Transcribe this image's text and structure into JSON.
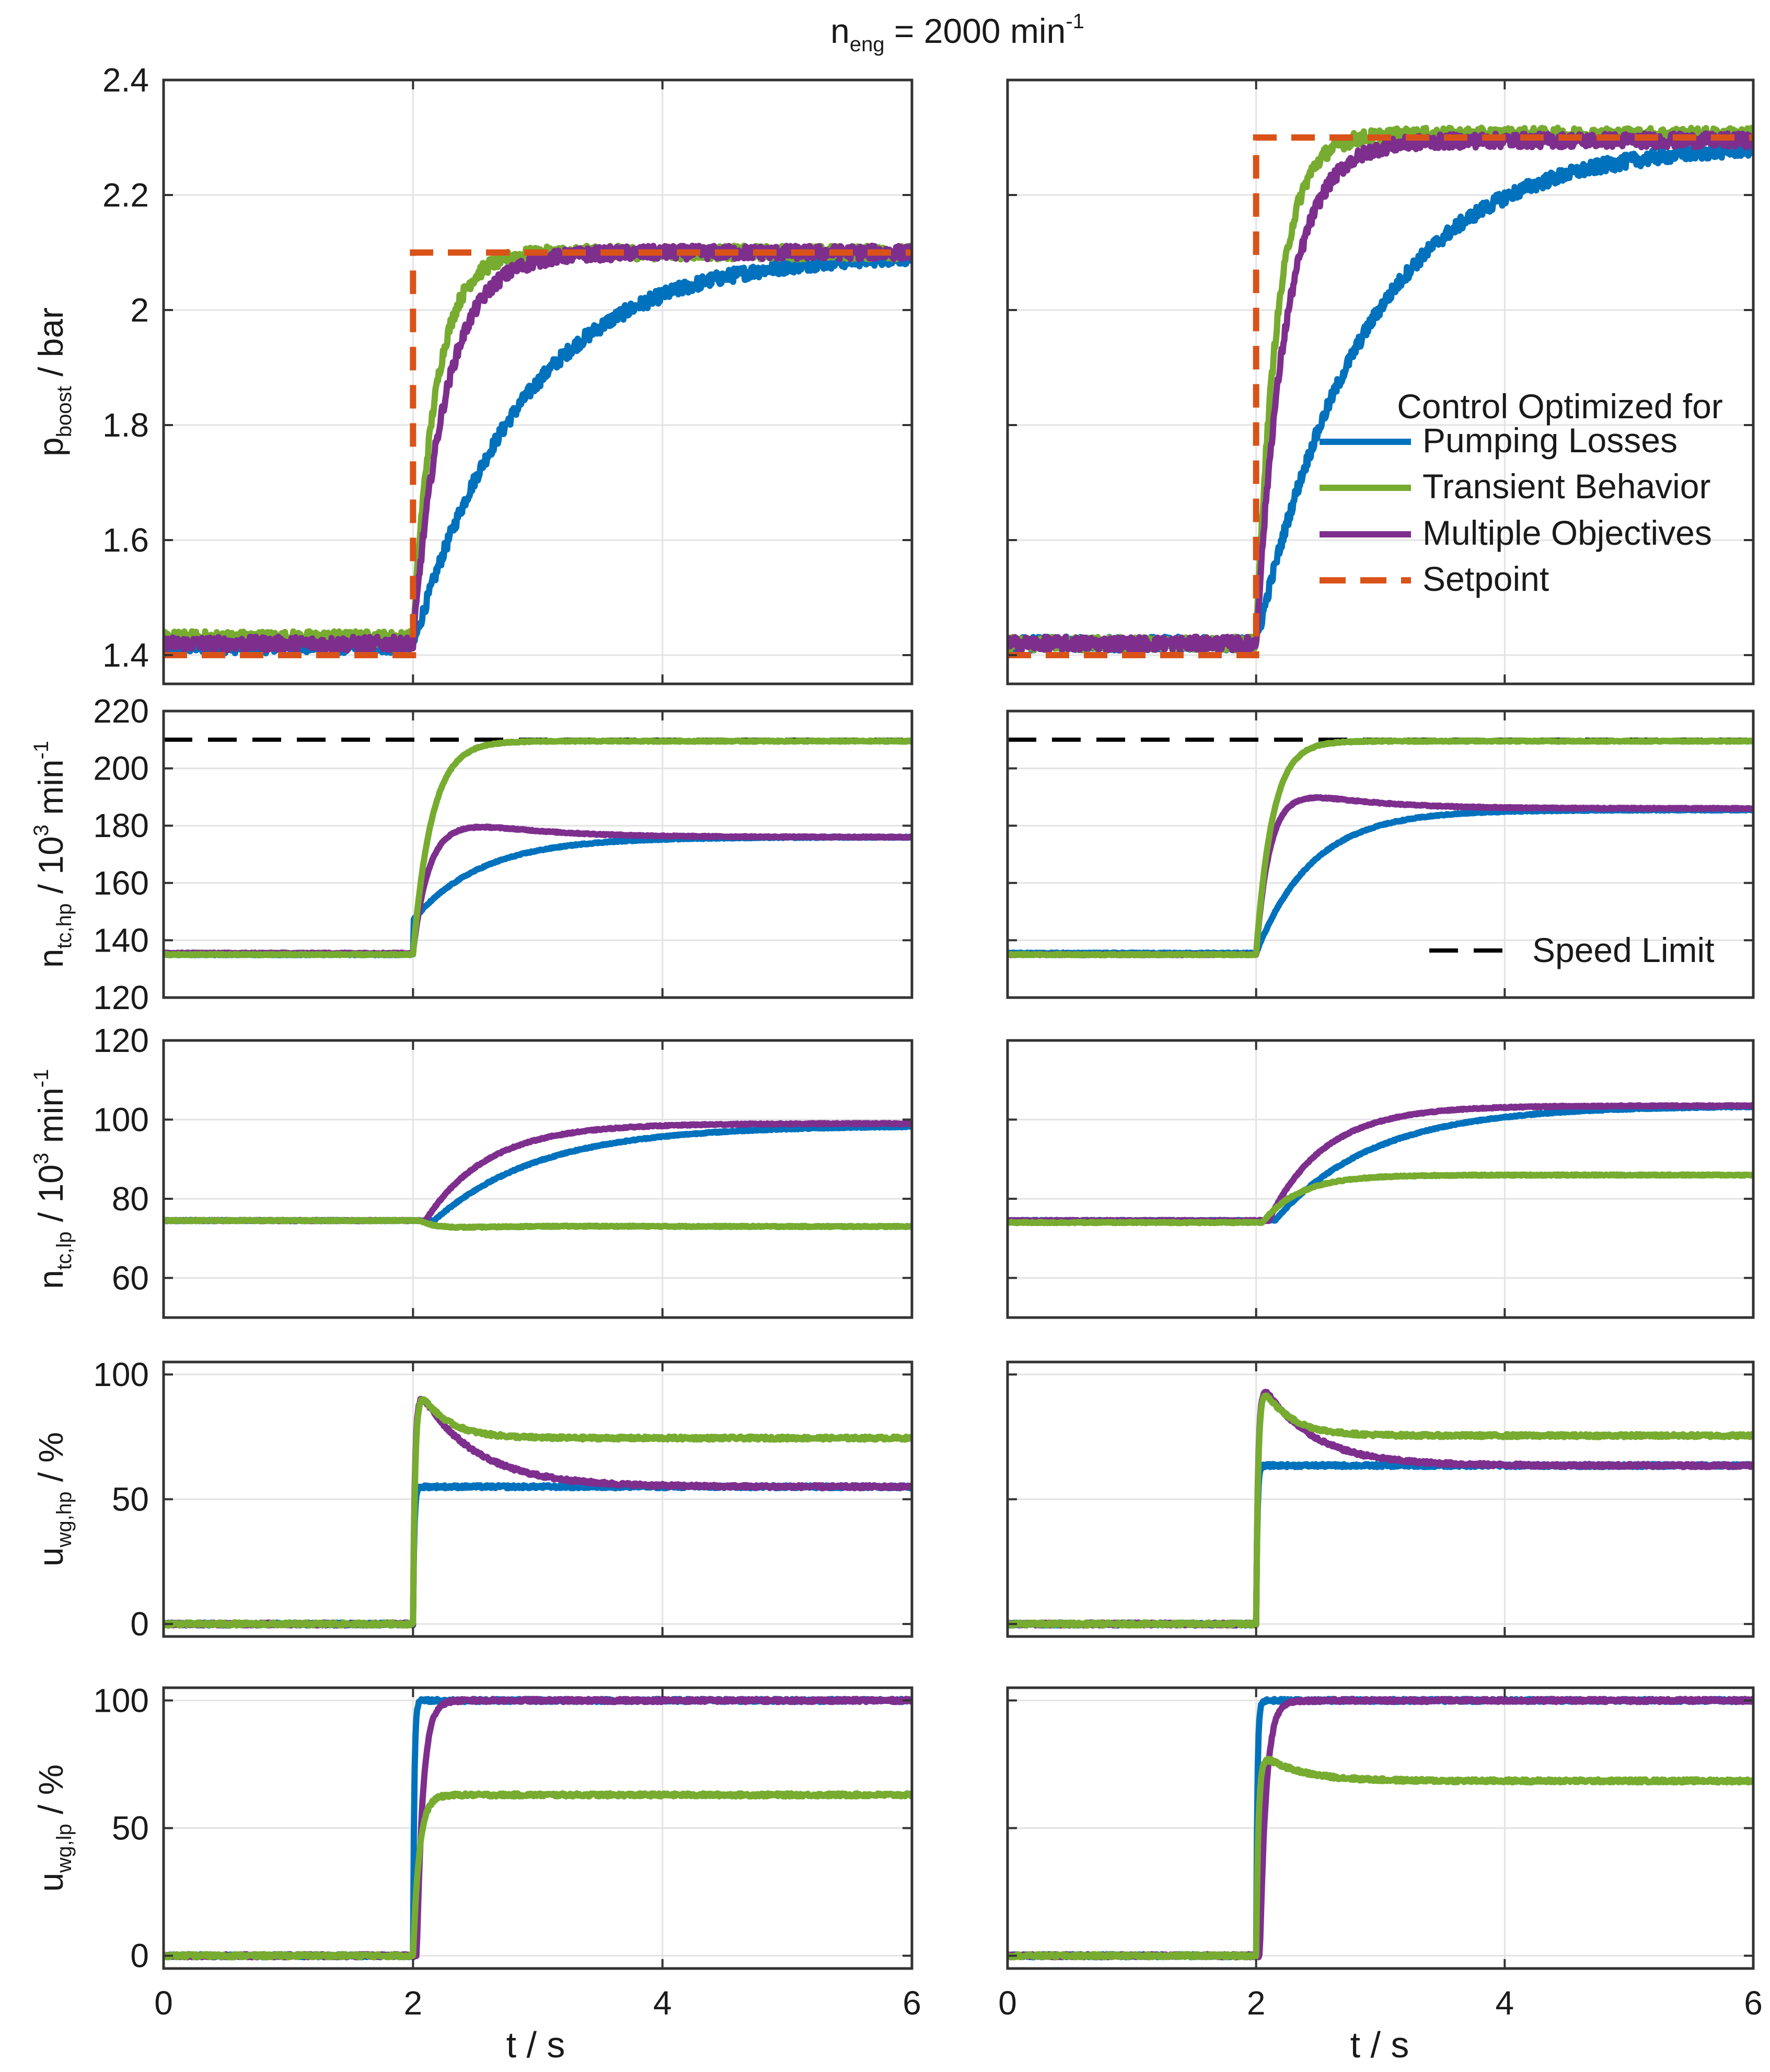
{
  "title": {
    "main": "n",
    "sub": "eng",
    "rest": " = 2000 min",
    "sup": "-1"
  },
  "xlabel": "t / s",
  "colors": {
    "pumping": "#0072BD",
    "transient": "#77AC30",
    "multiple": "#7E2F8E",
    "setpoint": "#D95319",
    "limit": "#000000"
  },
  "legend": {
    "title": "Control Optimized for",
    "pumping": "Pumping Losses",
    "transient": "Transient Behavior",
    "multiple": "Multiple Objectives",
    "setpoint": "Setpoint"
  },
  "legend2": {
    "limit": "Speed Limit"
  },
  "chart_data": [
    {
      "type": "line",
      "row": "p_boost",
      "column": "left",
      "ylabel": {
        "main": "p",
        "sub": "boost",
        "rest": " / bar"
      },
      "xlim": [
        0,
        6
      ],
      "ylim": [
        1.35,
        2.4
      ],
      "xticks": [
        "0",
        "2",
        "4",
        "6"
      ],
      "yticks": [
        "1.4",
        "1.6",
        "1.8",
        "2",
        "2.2",
        "2.4"
      ],
      "step_time": 2,
      "setpoint": [
        1.4,
        2.1
      ],
      "noise": 0.012,
      "series": [
        {
          "name": "Pumping Losses",
          "key": "pumping",
          "y0": 1.415,
          "y1": 2.1,
          "tau": 0.9,
          "overshoot": 0
        },
        {
          "name": "Transient Behavior",
          "key": "transient",
          "y0": 1.43,
          "y1": 2.1,
          "tau": 0.18,
          "overshoot": 0
        },
        {
          "name": "Multiple Objectives",
          "key": "multiple",
          "y0": 1.42,
          "y1": 2.1,
          "tau": 0.26,
          "overshoot": 0
        }
      ]
    },
    {
      "type": "line",
      "row": "p_boost",
      "column": "right",
      "xlim": [
        0,
        6
      ],
      "ylim": [
        1.35,
        2.4
      ],
      "xticks": [
        "0",
        "2",
        "4",
        "6"
      ],
      "yticks": [
        "1.4",
        "1.6",
        "1.8",
        "2",
        "2.2",
        "2.4"
      ],
      "step_time": 2,
      "setpoint": [
        1.4,
        2.3
      ],
      "noise": 0.012,
      "series": [
        {
          "name": "Pumping Losses",
          "key": "pumping",
          "y0": 1.42,
          "y1": 2.29,
          "tau": 0.9,
          "overshoot": 0
        },
        {
          "name": "Transient Behavior",
          "key": "transient",
          "y0": 1.42,
          "y1": 2.305,
          "tau": 0.17,
          "overshoot": 0
        },
        {
          "name": "Multiple Objectives",
          "key": "multiple",
          "y0": 1.42,
          "y1": 2.295,
          "tau": 0.24,
          "overshoot": 0
        }
      ]
    },
    {
      "type": "line",
      "row": "n_tc_hp",
      "column": "left",
      "ylabel": {
        "main": "n",
        "sub": "tc,hp",
        "rest": " / 10",
        "sup": "3",
        "rest2": " min",
        "sup2": "-1"
      },
      "xlim": [
        0,
        6
      ],
      "ylim": [
        120,
        220
      ],
      "xticks": [
        "0",
        "2",
        "4",
        "6"
      ],
      "yticks": [
        "120",
        "140",
        "160",
        "180",
        "200",
        "220"
      ],
      "step_time": 2,
      "speed_limit": 210,
      "noise": 0.2,
      "series": [
        {
          "name": "Pumping Losses",
          "key": "pumping",
          "y0": 135,
          "y1": 176,
          "tau": 0.55,
          "overshoot": 0,
          "jump": 12
        },
        {
          "name": "Multiple Objectives",
          "key": "multiple",
          "y0": 135.5,
          "y1": 176,
          "tau": 0.16,
          "overshoot": 12,
          "decay": 0.6
        },
        {
          "name": "Transient Behavior",
          "key": "transient",
          "y0": 135,
          "y1": 209.5,
          "tau": 0.15,
          "overshoot": 0
        }
      ]
    },
    {
      "type": "line",
      "row": "n_tc_hp",
      "column": "right",
      "xlim": [
        0,
        6
      ],
      "ylim": [
        120,
        220
      ],
      "xticks": [
        "0",
        "2",
        "4",
        "6"
      ],
      "yticks": [
        "120",
        "140",
        "160",
        "180",
        "200",
        "220"
      ],
      "step_time": 2,
      "speed_limit": 210,
      "noise": 0.2,
      "series": [
        {
          "name": "Pumping Losses",
          "key": "pumping",
          "y0": 135.5,
          "y1": 185.5,
          "tau": 0.45,
          "overshoot": 0
        },
        {
          "name": "Multiple Objectives",
          "key": "multiple",
          "y0": 135,
          "y1": 186,
          "tau": 0.13,
          "overshoot": 12,
          "decay": 0.55
        },
        {
          "name": "Transient Behavior",
          "key": "transient",
          "y0": 135,
          "y1": 209.5,
          "tau": 0.13,
          "overshoot": 0
        }
      ]
    },
    {
      "type": "line",
      "row": "n_tc_lp",
      "column": "left",
      "ylabel": {
        "main": "n",
        "sub": "tc,lp",
        "rest": " / 10",
        "sup": "3",
        "rest2": " min",
        "sup2": "-1"
      },
      "xlim": [
        0,
        6
      ],
      "ylim": [
        50,
        120
      ],
      "xticks": [
        "0",
        "2",
        "4",
        "6"
      ],
      "yticks": [
        "60",
        "80",
        "100",
        "120"
      ],
      "step_time": 2.05,
      "noise": 0.15,
      "series": [
        {
          "name": "Pumping Losses",
          "key": "pumping",
          "y0": 74.5,
          "y1": 98.5,
          "tau": 0.85,
          "overshoot": 0,
          "delay": 0.12
        },
        {
          "name": "Multiple Objectives",
          "key": "multiple",
          "y0": 74.5,
          "y1": 99,
          "tau": 0.5,
          "overshoot": 0,
          "delay": 0.05
        },
        {
          "name": "Transient Behavior",
          "key": "transient",
          "y0": 74.5,
          "y1": 73,
          "tau": 0.6,
          "overshoot": -4.5,
          "decay": 0.35
        }
      ]
    },
    {
      "type": "line",
      "row": "n_tc_lp",
      "column": "right",
      "xlim": [
        0,
        6
      ],
      "ylim": [
        50,
        120
      ],
      "xticks": [
        "0",
        "2",
        "4",
        "6"
      ],
      "yticks": [
        "60",
        "80",
        "100",
        "120"
      ],
      "step_time": 2.05,
      "noise": 0.15,
      "series": [
        {
          "name": "Pumping Losses",
          "key": "pumping",
          "y0": 74.5,
          "y1": 103.5,
          "tau": 0.8,
          "overshoot": 0,
          "delay": 0.1
        },
        {
          "name": "Multiple Objectives",
          "key": "multiple",
          "y0": 74.5,
          "y1": 103.5,
          "tau": 0.45,
          "overshoot": 0,
          "delay": 0.05
        },
        {
          "name": "Transient Behavior",
          "key": "transient",
          "y0": 74,
          "y1": 86,
          "tau": 0.3,
          "overshoot": 0
        }
      ]
    },
    {
      "type": "line",
      "row": "u_wg_hp",
      "column": "left",
      "ylabel": {
        "main": "u",
        "sub": "wg,hp",
        "rest": " / %"
      },
      "xlim": [
        0,
        6
      ],
      "ylim": [
        -5,
        105
      ],
      "xticks": [
        "0",
        "2",
        "4",
        "6"
      ],
      "yticks": [
        "0",
        "50",
        "100"
      ],
      "step_time": 2,
      "noise": 0.6,
      "series": [
        {
          "name": "Pumping Losses",
          "key": "pumping",
          "y0": 0,
          "y1": 55,
          "tau": 0.01,
          "overshoot": 0
        },
        {
          "name": "Multiple Objectives",
          "key": "multiple",
          "y0": 0,
          "y1": 55,
          "tau": 0.02,
          "overshoot": 43,
          "decay": 0.45
        },
        {
          "name": "Transient Behavior",
          "key": "transient",
          "y0": 0,
          "y1": 74.5,
          "tau": 0.02,
          "overshoot": 24,
          "decay": 0.22
        }
      ]
    },
    {
      "type": "line",
      "row": "u_wg_hp",
      "column": "right",
      "xlim": [
        0,
        6
      ],
      "ylim": [
        -5,
        105
      ],
      "xticks": [
        "0",
        "2",
        "4",
        "6"
      ],
      "yticks": [
        "0",
        "50",
        "100"
      ],
      "step_time": 2,
      "noise": 0.6,
      "series": [
        {
          "name": "Pumping Losses",
          "key": "pumping",
          "y0": 0,
          "y1": 63.5,
          "tau": 0.01,
          "overshoot": 0
        },
        {
          "name": "Multiple Objectives",
          "key": "multiple",
          "y0": 0,
          "y1": 63.5,
          "tau": 0.02,
          "overshoot": 37,
          "decay": 0.4,
          "sat": 100
        },
        {
          "name": "Transient Behavior",
          "key": "transient",
          "y0": 0,
          "y1": 75.5,
          "tau": 0.02,
          "overshoot": 25,
          "decay": 0.22,
          "sat": 100
        }
      ]
    },
    {
      "type": "line",
      "row": "u_wg_lp",
      "column": "left",
      "ylabel": {
        "main": "u",
        "sub": "wg,lp",
        "rest": " / %"
      },
      "xlim": [
        0,
        6
      ],
      "ylim": [
        -5,
        105
      ],
      "xticks": [
        "0",
        "2",
        "4",
        "6"
      ],
      "yticks": [
        "0",
        "50",
        "100"
      ],
      "step_time": 2,
      "noise": 0.6,
      "series": [
        {
          "name": "Pumping Losses",
          "key": "pumping",
          "y0": 0,
          "y1": 100,
          "tau": 0.01,
          "overshoot": 0
        },
        {
          "name": "Multiple Objectives",
          "key": "multiple",
          "y0": 0,
          "y1": 100,
          "tau": 0.05,
          "overshoot": 0,
          "delay": 0.03
        },
        {
          "name": "Transient Behavior",
          "key": "transient",
          "y0": 0,
          "y1": 63,
          "tau": 0.05,
          "overshoot": 0
        }
      ]
    },
    {
      "type": "line",
      "row": "u_wg_lp",
      "column": "right",
      "xlim": [
        0,
        6
      ],
      "ylim": [
        -5,
        105
      ],
      "xticks": [
        "0",
        "2",
        "4",
        "6"
      ],
      "yticks": [
        "0",
        "50",
        "100"
      ],
      "step_time": 2,
      "noise": 0.6,
      "series": [
        {
          "name": "Pumping Losses",
          "key": "pumping",
          "y0": 0,
          "y1": 100,
          "tau": 0.01,
          "overshoot": 0
        },
        {
          "name": "Multiple Objectives",
          "key": "multiple",
          "y0": 0,
          "y1": 100,
          "tau": 0.05,
          "overshoot": 0,
          "delay": 0.03
        },
        {
          "name": "Transient Behavior",
          "key": "transient",
          "y0": 0,
          "y1": 68.5,
          "tau": 0.02,
          "overshoot": 12,
          "decay": 0.3
        }
      ]
    }
  ]
}
